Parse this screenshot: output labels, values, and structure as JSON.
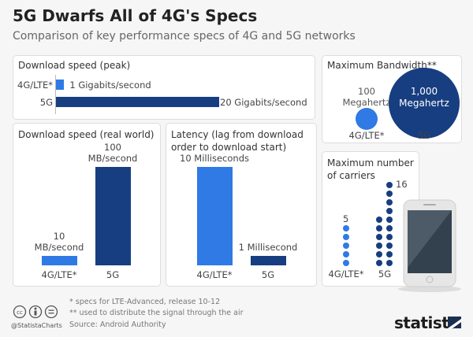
{
  "header": {
    "title": "5G Dwarfs All of 4G's Specs",
    "subtitle": "Comparison of key performance specs of 4G and 5G networks"
  },
  "colors": {
    "lte": "#2f7ae5",
    "fiveg": "#173e80",
    "background": "#f6f6f6"
  },
  "chart_data": [
    {
      "type": "bar",
      "orientation": "horizontal",
      "title": "Download speed (peak)",
      "categories": [
        "4G/LTE*",
        "5G"
      ],
      "values": [
        1,
        20
      ],
      "data_labels": [
        "1 Gigabits/second",
        "20 Gigabits/second"
      ]
    },
    {
      "type": "bar",
      "title": "Download speed (real world)",
      "categories": [
        "4G/LTE*",
        "5G"
      ],
      "values": [
        10,
        100
      ],
      "data_labels": [
        "10 MB/second",
        "100 MB/second"
      ]
    },
    {
      "type": "bar",
      "title": "Latency (lag from download order to download start)",
      "categories": [
        "4G/LTE*",
        "5G"
      ],
      "values": [
        10,
        1
      ],
      "data_labels": [
        "10 Milliseconds",
        "1 Millisecond"
      ]
    },
    {
      "type": "bubble",
      "title": "Maximum Bandwidth**",
      "categories": [
        "4G/LTE*",
        "5G"
      ],
      "values": [
        100,
        1000
      ],
      "data_labels": [
        "100 Megahertz",
        "1,000 Megahertz"
      ]
    },
    {
      "type": "dot",
      "title": "Maximum number of carriers",
      "categories": [
        "4G/LTE*",
        "5G"
      ],
      "values": [
        5,
        16
      ],
      "data_labels": [
        "5",
        "16"
      ]
    }
  ],
  "footer": {
    "note1": "*   specs for LTE-Advanced, release 10-12",
    "note2": "** used to distribute the signal through the air",
    "source": "Source: Android Authority",
    "handle": "@StatistaCharts",
    "logo": "statista"
  }
}
